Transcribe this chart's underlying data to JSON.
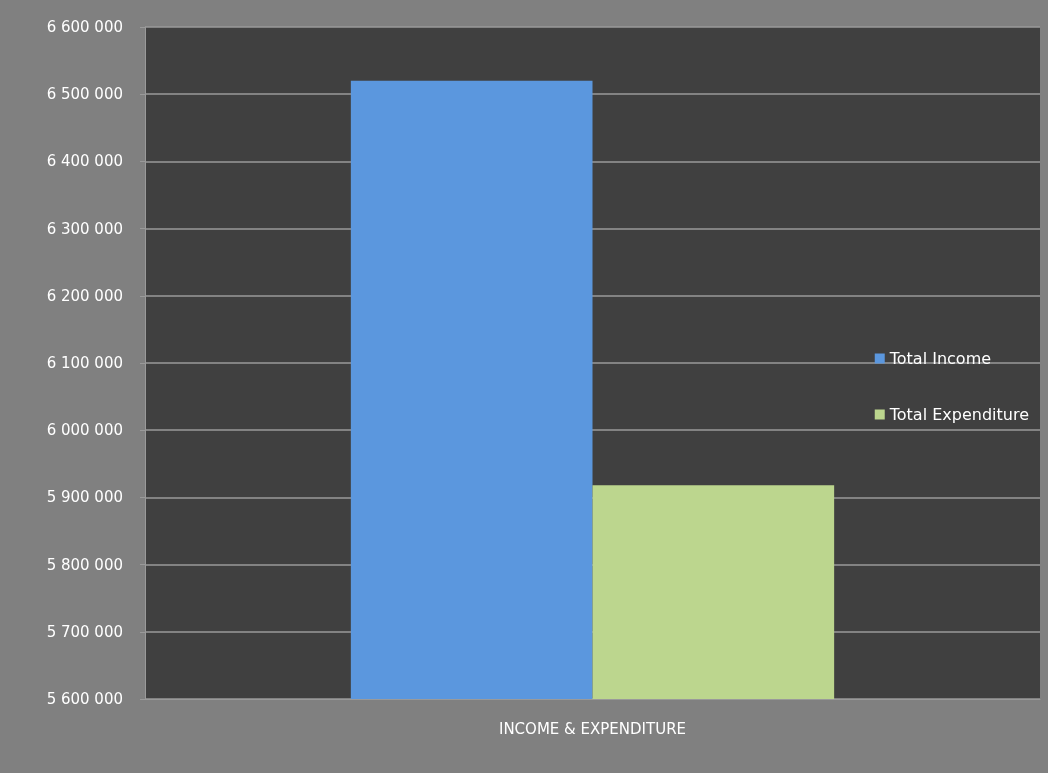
{
  "chart_data": {
    "type": "bar",
    "categories": [
      "INCOME & EXPENDITURE"
    ],
    "series": [
      {
        "name": "Total Income",
        "color": "#5b97de",
        "values": [
          6520000
        ]
      },
      {
        "name": "Total Expenditure",
        "color": "#bcd68e",
        "values": [
          5918000
        ]
      }
    ],
    "ylim": [
      5600000,
      6600000
    ],
    "yticks": [
      {
        "value": 5600000,
        "label": "5 600 000"
      },
      {
        "value": 5700000,
        "label": "5 700 000"
      },
      {
        "value": 5800000,
        "label": "5 800 000"
      },
      {
        "value": 5900000,
        "label": "5 900 000"
      },
      {
        "value": 6000000,
        "label": "6 000 000"
      },
      {
        "value": 6100000,
        "label": "6 100 000"
      },
      {
        "value": 6200000,
        "label": "6 200 000"
      },
      {
        "value": 6300000,
        "label": "6 300 000"
      },
      {
        "value": 6400000,
        "label": "6 400 000"
      },
      {
        "value": 6500000,
        "label": "6 500 000"
      },
      {
        "value": 6600000,
        "label": "6 600 000"
      }
    ],
    "grid": "y",
    "legend": "right"
  }
}
